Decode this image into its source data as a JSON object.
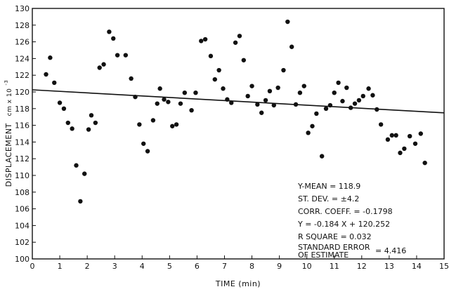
{
  "chart_data": {
    "type": "scatter",
    "xlabel": "TIME  (min)",
    "ylabel_main": "DISPLACEMENT",
    "ylabel_unit": "cm x 10",
    "ylabel_exp": "-3",
    "xlim": [
      0,
      15
    ],
    "ylim": [
      100,
      130
    ],
    "x_ticks": [
      "0",
      "1",
      "2",
      "3",
      "4",
      "5",
      "6",
      "7",
      "8",
      "9",
      "10",
      "11",
      "12",
      "13",
      "14",
      "15"
    ],
    "y_ticks": [
      "100",
      "102",
      "104",
      "106",
      "108",
      "110",
      "112",
      "114",
      "116",
      "118",
      "120",
      "122",
      "124",
      "126",
      "128",
      "130"
    ],
    "grid": false,
    "regression": {
      "slope": -0.184,
      "intercept": 120.252
    },
    "points": [
      [
        0.5,
        122.1
      ],
      [
        0.65,
        124.1
      ],
      [
        0.8,
        121.1
      ],
      [
        1.0,
        118.7
      ],
      [
        1.15,
        118.0
      ],
      [
        1.3,
        116.3
      ],
      [
        1.45,
        115.6
      ],
      [
        1.6,
        111.2
      ],
      [
        1.75,
        106.9
      ],
      [
        1.9,
        110.2
      ],
      [
        2.05,
        115.5
      ],
      [
        2.15,
        117.2
      ],
      [
        2.3,
        116.3
      ],
      [
        2.45,
        122.9
      ],
      [
        2.6,
        123.3
      ],
      [
        2.8,
        127.2
      ],
      [
        2.95,
        126.4
      ],
      [
        3.1,
        124.4
      ],
      [
        3.4,
        124.4
      ],
      [
        3.6,
        121.6
      ],
      [
        3.75,
        119.4
      ],
      [
        3.9,
        116.1
      ],
      [
        4.05,
        113.8
      ],
      [
        4.2,
        112.9
      ],
      [
        4.4,
        116.6
      ],
      [
        4.55,
        118.6
      ],
      [
        4.65,
        120.4
      ],
      [
        4.8,
        119.1
      ],
      [
        4.95,
        118.8
      ],
      [
        5.1,
        115.9
      ],
      [
        5.25,
        116.1
      ],
      [
        5.4,
        118.6
      ],
      [
        5.55,
        119.9
      ],
      [
        5.8,
        117.8
      ],
      [
        5.95,
        119.9
      ],
      [
        6.15,
        126.1
      ],
      [
        6.3,
        126.3
      ],
      [
        6.5,
        124.3
      ],
      [
        6.65,
        121.5
      ],
      [
        6.8,
        122.6
      ],
      [
        6.95,
        120.4
      ],
      [
        7.1,
        119.1
      ],
      [
        7.25,
        118.7
      ],
      [
        7.4,
        125.9
      ],
      [
        7.55,
        126.7
      ],
      [
        7.7,
        123.8
      ],
      [
        7.85,
        119.5
      ],
      [
        8.0,
        120.7
      ],
      [
        8.2,
        118.5
      ],
      [
        8.35,
        117.5
      ],
      [
        8.5,
        119.0
      ],
      [
        8.65,
        120.1
      ],
      [
        8.8,
        118.4
      ],
      [
        8.95,
        120.5
      ],
      [
        9.15,
        122.6
      ],
      [
        9.3,
        128.4
      ],
      [
        9.45,
        125.4
      ],
      [
        9.6,
        118.5
      ],
      [
        9.75,
        119.9
      ],
      [
        9.9,
        120.7
      ],
      [
        10.05,
        115.1
      ],
      [
        10.2,
        115.9
      ],
      [
        10.35,
        117.4
      ],
      [
        10.55,
        112.3
      ],
      [
        10.7,
        118.0
      ],
      [
        10.85,
        118.4
      ],
      [
        11.0,
        119.9
      ],
      [
        11.15,
        121.1
      ],
      [
        11.3,
        118.9
      ],
      [
        11.45,
        120.5
      ],
      [
        11.6,
        118.1
      ],
      [
        11.75,
        118.6
      ],
      [
        11.9,
        119.0
      ],
      [
        12.05,
        119.5
      ],
      [
        12.25,
        120.4
      ],
      [
        12.4,
        119.6
      ],
      [
        12.55,
        117.9
      ],
      [
        12.7,
        116.1
      ],
      [
        12.95,
        114.3
      ],
      [
        13.1,
        114.8
      ],
      [
        13.25,
        114.8
      ],
      [
        13.4,
        112.7
      ],
      [
        13.55,
        113.2
      ],
      [
        13.75,
        114.7
      ],
      [
        13.95,
        113.8
      ],
      [
        14.15,
        115.0
      ],
      [
        14.3,
        111.5
      ]
    ],
    "annotations": {
      "y_mean": "Y-MEAN = 118.9",
      "st_dev": "ST. DEV. = ±4.2",
      "corr": "CORR. COEFF. = -0.1798",
      "equation": "Y = -0.184 X + 120.252",
      "r_square": "R SQUARE = 0.032",
      "se_line1": "STANDARD ERROR",
      "se_line2": "OF ESTIMATE",
      "se_value": "= 4.416"
    }
  }
}
